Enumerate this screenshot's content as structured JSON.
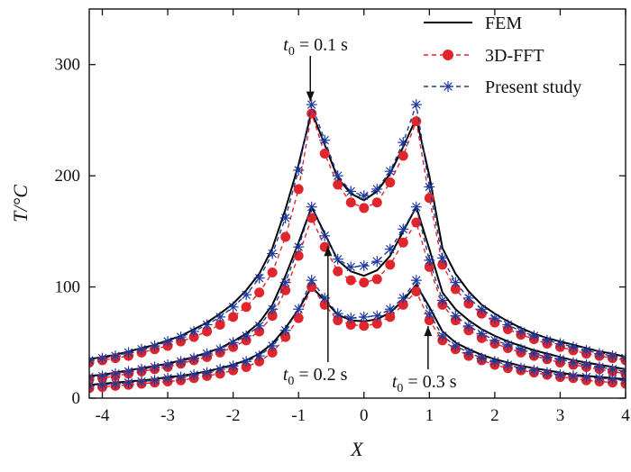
{
  "chart_data": {
    "type": "line",
    "xlabel": "X",
    "ylabel": "T/°C",
    "xlim": [
      -4.2,
      4.0
    ],
    "ylim": [
      0,
      350
    ],
    "xticks": [
      "-4",
      "-3",
      "-2",
      "-1",
      "0",
      "1",
      "2",
      "3",
      "4"
    ],
    "yticks": [
      "0",
      "100",
      "200",
      "300"
    ],
    "legend_position": "top-right",
    "legend": [
      "FEM",
      "3D-FFT",
      "Present study"
    ],
    "annotations": [
      {
        "text": "t0 = 0.1 s",
        "x": -0.82,
        "y": 262
      },
      {
        "text": "t0 = 0.2 s",
        "x": -0.55,
        "y": 140
      },
      {
        "text": "t0 = 0.3 s",
        "x": 0.98,
        "y": 68
      }
    ],
    "x": [
      -4.2,
      -4.0,
      -3.8,
      -3.6,
      -3.4,
      -3.2,
      -3.0,
      -2.8,
      -2.6,
      -2.4,
      -2.2,
      -2.0,
      -1.8,
      -1.6,
      -1.4,
      -1.2,
      -1.0,
      -0.8,
      -0.6,
      -0.4,
      -0.2,
      0.0,
      0.2,
      0.4,
      0.6,
      0.8,
      1.0,
      1.2,
      1.4,
      1.6,
      1.8,
      2.0,
      2.2,
      2.4,
      2.6,
      2.8,
      3.0,
      3.2,
      3.4,
      3.6,
      3.8,
      4.0
    ],
    "series": [
      {
        "name": "FEM",
        "group": "t0 = 0.1 s",
        "style": "solid",
        "color": "#000000",
        "values": [
          35,
          37,
          39,
          42,
          45,
          48,
          52,
          56,
          62,
          68,
          76,
          85,
          97,
          112,
          135,
          170,
          210,
          258,
          228,
          198,
          184,
          178,
          186,
          202,
          226,
          252,
          200,
          135,
          112,
          96,
          84,
          76,
          69,
          63,
          58,
          54,
          51,
          48,
          45,
          42,
          40,
          37
        ]
      },
      {
        "name": "3D-FFT",
        "group": "t0 = 0.1 s",
        "style": "dashed-dot",
        "color": "#e0262c",
        "values": [
          32,
          34,
          36,
          38,
          41,
          44,
          47,
          51,
          55,
          60,
          66,
          73,
          82,
          95,
          113,
          145,
          188,
          256,
          220,
          192,
          176,
          171,
          176,
          194,
          218,
          249,
          180,
          120,
          98,
          85,
          76,
          68,
          62,
          57,
          53,
          49,
          46,
          43,
          40,
          38,
          36,
          34
        ]
      },
      {
        "name": "Present study",
        "group": "t0 = 0.1 s",
        "style": "dashed-star",
        "color": "#1d3a9c",
        "values": [
          34,
          36,
          38,
          41,
          44,
          47,
          51,
          55,
          60,
          66,
          73,
          82,
          93,
          108,
          130,
          162,
          205,
          264,
          232,
          200,
          186,
          182,
          188,
          204,
          230,
          264,
          190,
          126,
          104,
          90,
          80,
          72,
          66,
          60,
          56,
          52,
          49,
          46,
          43,
          40,
          38,
          36
        ]
      },
      {
        "name": "FEM",
        "group": "t0 = 0.2 s",
        "style": "solid",
        "color": "#000000",
        "values": [
          20,
          21,
          23,
          25,
          27,
          29,
          31,
          34,
          37,
          41,
          45,
          51,
          58,
          68,
          84,
          110,
          140,
          172,
          148,
          124,
          114,
          110,
          115,
          128,
          150,
          172,
          134,
          95,
          80,
          70,
          62,
          56,
          51,
          47,
          43,
          40,
          37,
          34,
          32,
          30,
          28,
          26
        ]
      },
      {
        "name": "3D-FFT",
        "group": "t0 = 0.2 s",
        "style": "dashed-dot",
        "color": "#e0262c",
        "values": [
          17,
          18,
          20,
          22,
          24,
          26,
          28,
          31,
          34,
          37,
          41,
          46,
          52,
          60,
          74,
          97,
          128,
          162,
          136,
          114,
          106,
          104,
          107,
          120,
          140,
          158,
          118,
          84,
          70,
          61,
          54,
          49,
          45,
          41,
          38,
          35,
          32,
          30,
          28,
          26,
          24,
          22
        ]
      },
      {
        "name": "Present study",
        "group": "t0 = 0.2 s",
        "style": "dashed-star",
        "color": "#1d3a9c",
        "values": [
          19,
          20,
          22,
          24,
          26,
          28,
          30,
          33,
          36,
          40,
          44,
          50,
          56,
          65,
          80,
          104,
          136,
          172,
          146,
          125,
          118,
          119,
          123,
          134,
          152,
          172,
          124,
          88,
          74,
          65,
          58,
          52,
          48,
          44,
          40,
          37,
          35,
          32,
          30,
          28,
          26,
          24
        ]
      },
      {
        "name": "FEM",
        "group": "t0 = 0.3 s",
        "style": "solid",
        "color": "#000000",
        "values": [
          12,
          13,
          14,
          15,
          16,
          17,
          19,
          20,
          22,
          24,
          27,
          30,
          34,
          40,
          49,
          63,
          80,
          100,
          88,
          75,
          70,
          69,
          71,
          77,
          88,
          102,
          82,
          60,
          50,
          44,
          39,
          35,
          32,
          29,
          27,
          25,
          23,
          21,
          20,
          19,
          18,
          17
        ]
      },
      {
        "name": "3D-FFT",
        "group": "t0 = 0.3 s",
        "style": "dashed-dot",
        "color": "#e0262c",
        "values": [
          9,
          10,
          11,
          12,
          13,
          14,
          15,
          16,
          18,
          20,
          22,
          25,
          28,
          33,
          41,
          55,
          72,
          100,
          84,
          70,
          66,
          65,
          67,
          73,
          84,
          96,
          70,
          52,
          44,
          38,
          34,
          30,
          27,
          25,
          23,
          21,
          19,
          18,
          16,
          15,
          14,
          13
        ]
      },
      {
        "name": "Present study",
        "group": "t0 = 0.3 s",
        "style": "dashed-star",
        "color": "#1d3a9c",
        "values": [
          11,
          12,
          13,
          14,
          15,
          16,
          18,
          19,
          21,
          23,
          26,
          29,
          33,
          38,
          47,
          61,
          80,
          106,
          90,
          76,
          72,
          73,
          74,
          80,
          90,
          106,
          76,
          56,
          47,
          41,
          36,
          33,
          30,
          27,
          25,
          23,
          21,
          20,
          19,
          18,
          17,
          16
        ]
      }
    ]
  }
}
